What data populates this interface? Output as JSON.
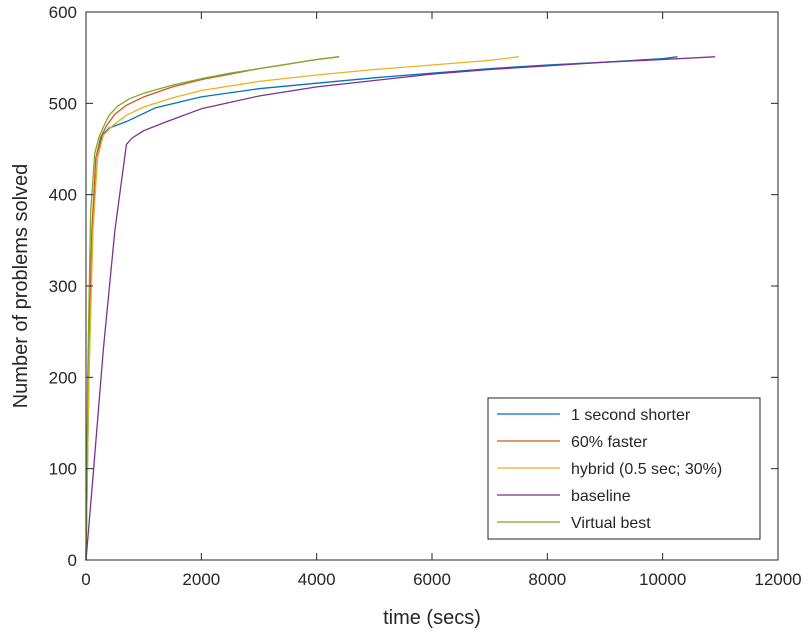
{
  "chart_data": {
    "type": "line",
    "xlabel": "time (secs)",
    "ylabel": "Number of problems solved",
    "xlim": [
      0,
      12000
    ],
    "ylim": [
      0,
      600
    ],
    "xticks": [
      "0",
      "2000",
      "4000",
      "6000",
      "8000",
      "10000",
      "12000"
    ],
    "yticks": [
      "0",
      "100",
      "200",
      "300",
      "400",
      "500",
      "600"
    ],
    "grid": false,
    "legend_position": "bottom-right",
    "series": [
      {
        "name": "1 second shorter",
        "color": "#0072BD",
        "x": [
          0,
          50,
          120,
          200,
          280,
          400,
          700,
          1200,
          2000,
          3000,
          4000,
          5000,
          6000,
          7000,
          8000,
          9000,
          10000,
          10250
        ],
        "y": [
          0,
          200,
          370,
          440,
          465,
          473,
          480,
          495,
          507,
          516,
          522,
          528,
          533,
          538,
          542,
          545,
          549,
          551
        ]
      },
      {
        "name": "60% faster",
        "color": "#D95319",
        "x": [
          0,
          40,
          100,
          170,
          250,
          350,
          500,
          700,
          1000,
          1500,
          2000,
          2500,
          3000,
          3500,
          4000,
          4380
        ],
        "y": [
          0,
          200,
          360,
          440,
          462,
          475,
          488,
          498,
          507,
          518,
          526,
          532,
          538,
          543,
          548,
          551
        ]
      },
      {
        "name": "hybrid (0.5 sec; 30%)",
        "color": "#EDB120",
        "x": [
          0,
          50,
          120,
          200,
          300,
          450,
          700,
          1000,
          1500,
          2000,
          3000,
          4000,
          5000,
          6000,
          7000,
          7500
        ],
        "y": [
          0,
          200,
          360,
          440,
          465,
          475,
          487,
          496,
          506,
          514,
          524,
          531,
          537,
          542,
          547,
          551
        ]
      },
      {
        "name": "baseline",
        "color": "#7E2F8E",
        "x": [
          0,
          120,
          300,
          500,
          700,
          800,
          1000,
          1400,
          2000,
          3000,
          4000,
          5000,
          6000,
          7000,
          8000,
          9000,
          10000,
          10900
        ],
        "y": [
          0,
          90,
          230,
          360,
          455,
          462,
          470,
          480,
          494,
          508,
          518,
          525,
          532,
          537,
          541,
          545,
          548,
          551
        ]
      },
      {
        "name": "Virtual best",
        "color": "#77AC30",
        "x": [
          0,
          30,
          80,
          150,
          220,
          300,
          400,
          550,
          750,
          1000,
          1500,
          2000,
          2500,
          3000,
          3500,
          4000,
          4380
        ],
        "y": [
          0,
          200,
          380,
          445,
          462,
          474,
          487,
          497,
          505,
          511,
          520,
          527,
          533,
          538,
          543,
          548,
          551
        ]
      }
    ]
  }
}
